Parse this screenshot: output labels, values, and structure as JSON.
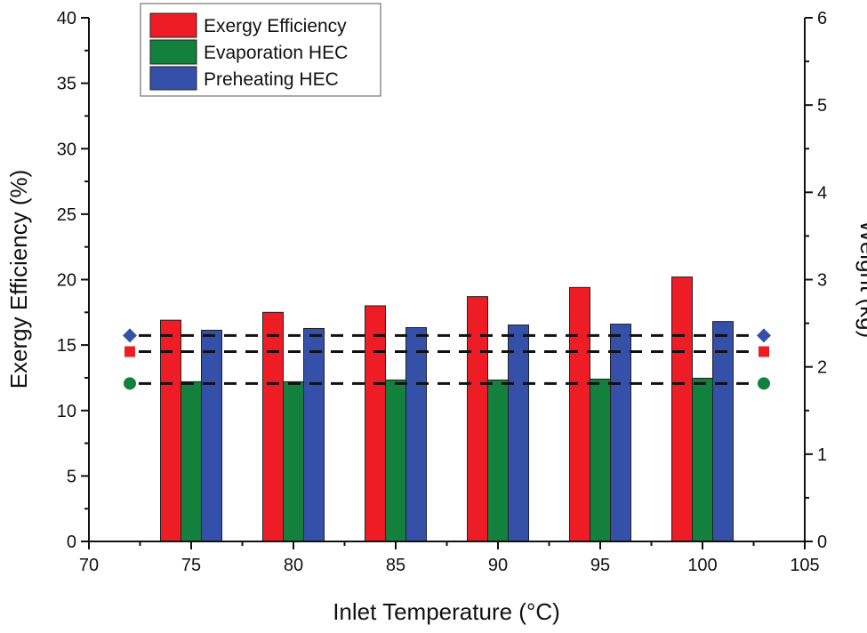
{
  "chart_data": {
    "type": "bar",
    "title": "",
    "xlabel": "Inlet Temperature (°C)",
    "ylabel": "Exergy Efficiency (%)",
    "y2label": "Weight (kg)",
    "xlim": [
      70,
      105
    ],
    "ylim": [
      0,
      40
    ],
    "y2lim": [
      0,
      6
    ],
    "x_ticks": [
      "70",
      "75",
      "80",
      "85",
      "90",
      "95",
      "100",
      "105"
    ],
    "y_ticks": [
      "0",
      "5",
      "10",
      "15",
      "20",
      "25",
      "30",
      "35",
      "40"
    ],
    "y2_ticks": [
      "0",
      "1",
      "2",
      "3",
      "4",
      "5",
      "6"
    ],
    "categories": [
      75,
      80,
      85,
      90,
      95,
      100
    ],
    "legend_position": "top-left",
    "series": [
      {
        "name": "Exergy Efficiency",
        "axis": "left",
        "color": "#ee1c25",
        "offset": -1,
        "values": [
          16.9,
          17.5,
          18.0,
          18.7,
          19.4,
          20.2
        ]
      },
      {
        "name": "Evaporation HEC",
        "axis": "right",
        "color": "#13803e",
        "offset": 0,
        "values": [
          1.83,
          1.83,
          1.85,
          1.85,
          1.86,
          1.87
        ]
      },
      {
        "name": "Preheating HEC",
        "axis": "right",
        "color": "#3550a8",
        "offset": 1,
        "values": [
          2.42,
          2.44,
          2.45,
          2.48,
          2.49,
          2.52
        ]
      }
    ],
    "reference_lines": [
      {
        "series": "Preheating HEC",
        "axis": "right",
        "value": 2.36,
        "marker": "diamond",
        "color": "#3550a8"
      },
      {
        "series": "Exergy Efficiency",
        "axis": "left",
        "value": 14.5,
        "marker": "square",
        "color": "#ee1c25"
      },
      {
        "series": "Evaporation HEC",
        "axis": "right",
        "value": 1.81,
        "marker": "circle",
        "color": "#13803e"
      }
    ]
  }
}
